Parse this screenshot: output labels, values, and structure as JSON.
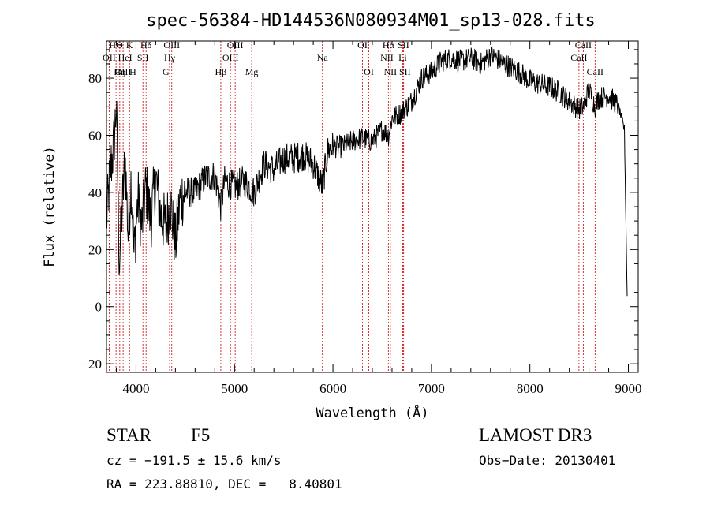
{
  "chart_data": {
    "type": "line",
    "title": "spec-56384-HD144536N080934M01_sp13-028.fits",
    "xlabel": "Wavelength (Å)",
    "ylabel": "Flux (relative)",
    "xlim": [
      3700,
      9100
    ],
    "ylim": [
      -23,
      93
    ],
    "x_ticks": [
      4000,
      5000,
      6000,
      7000,
      8000,
      9000
    ],
    "y_ticks": [
      -20,
      0,
      20,
      40,
      60,
      80
    ],
    "series": [
      {
        "name": "flux",
        "x": [
          3700,
          3740,
          3770,
          3800,
          3830,
          3860,
          3890,
          3920,
          3950,
          3980,
          4020,
          4060,
          4100,
          4150,
          4200,
          4250,
          4300,
          4350,
          4400,
          4450,
          4500,
          4600,
          4700,
          4800,
          4861,
          4900,
          5000,
          5100,
          5200,
          5300,
          5400,
          5500,
          5600,
          5700,
          5800,
          5893,
          5950,
          6000,
          6100,
          6200,
          6300,
          6400,
          6500,
          6563,
          6600,
          6700,
          6800,
          6900,
          7000,
          7100,
          7200,
          7300,
          7400,
          7500,
          7600,
          7700,
          7800,
          7900,
          8000,
          8100,
          8200,
          8300,
          8400,
          8498,
          8542,
          8600,
          8662,
          8700,
          8800,
          8900,
          8960,
          8990
        ],
        "y": [
          30,
          48,
          55,
          70,
          15,
          35,
          52,
          25,
          45,
          18,
          38,
          28,
          42,
          30,
          45,
          32,
          28,
          36,
          22,
          38,
          40,
          40,
          45,
          46,
          35,
          44,
          42,
          44,
          40,
          50,
          48,
          52,
          52,
          53,
          50,
          42,
          55,
          56,
          56,
          58,
          59,
          58,
          62,
          60,
          66,
          68,
          72,
          80,
          82,
          86,
          87,
          86,
          87,
          85,
          88,
          86,
          84,
          82,
          79,
          78,
          77,
          75,
          72,
          69,
          70,
          76,
          70,
          73,
          74,
          70,
          62,
          -1
        ]
      }
    ],
    "lines": [
      {
        "label": "HΘ",
        "wl": 3797,
        "row": 0
      },
      {
        "label": "K",
        "wl": 3934,
        "row": 0
      },
      {
        "label": "Hδ",
        "wl": 4102,
        "row": 0
      },
      {
        "label": "OIII",
        "wl": 4363,
        "row": 0
      },
      {
        "label": "OII",
        "wl": 3727,
        "row": 1
      },
      {
        "label": "HeI",
        "wl": 3889,
        "row": 1
      },
      {
        "label": "SII",
        "wl": 4070,
        "row": 1
      },
      {
        "label": "Hγ",
        "wl": 4341,
        "row": 1
      },
      {
        "label": "OIII",
        "wl": 3869,
        "row": 2
      },
      {
        "label": "Hη",
        "wl": 3835,
        "row": 2
      },
      {
        "label": "H",
        "wl": 3968,
        "row": 2
      },
      {
        "label": "G",
        "wl": 4304,
        "row": 2
      },
      {
        "label": "OIII",
        "wl": 5007,
        "row": 0
      },
      {
        "label": "OIII",
        "wl": 4959,
        "row": 1
      },
      {
        "label": "Hβ",
        "wl": 4861,
        "row": 2
      },
      {
        "label": "Mg",
        "wl": 5175,
        "row": 2
      },
      {
        "label": "Na",
        "wl": 5893,
        "row": 1
      },
      {
        "label": "OI",
        "wl": 6300,
        "row": 0
      },
      {
        "label": "OI",
        "wl": 6364,
        "row": 2
      },
      {
        "label": "Hα",
        "wl": 6563,
        "row": 0
      },
      {
        "label": "SII",
        "wl": 6716,
        "row": 0
      },
      {
        "label": "NII",
        "wl": 6548,
        "row": 1
      },
      {
        "label": "Li",
        "wl": 6708,
        "row": 1
      },
      {
        "label": "NII",
        "wl": 6583,
        "row": 2
      },
      {
        "label": "SII",
        "wl": 6731,
        "row": 2
      },
      {
        "label": "CaII",
        "wl": 8542,
        "row": 0
      },
      {
        "label": "CaII",
        "wl": 8498,
        "row": 1
      },
      {
        "label": "CaII",
        "wl": 8662,
        "row": 2
      }
    ]
  },
  "info": {
    "class": "STAR",
    "subclass": "F5",
    "survey": "LAMOST DR3",
    "cz": "cz = −191.5 ± 15.6 km/s",
    "obs_date": "Obs−Date: 20130401",
    "radec": "RA = 223.88810, DEC =   8.40801"
  },
  "colors": {
    "line_marker": "#cc0000",
    "spectrum": "#000000",
    "axes": "#000000"
  }
}
